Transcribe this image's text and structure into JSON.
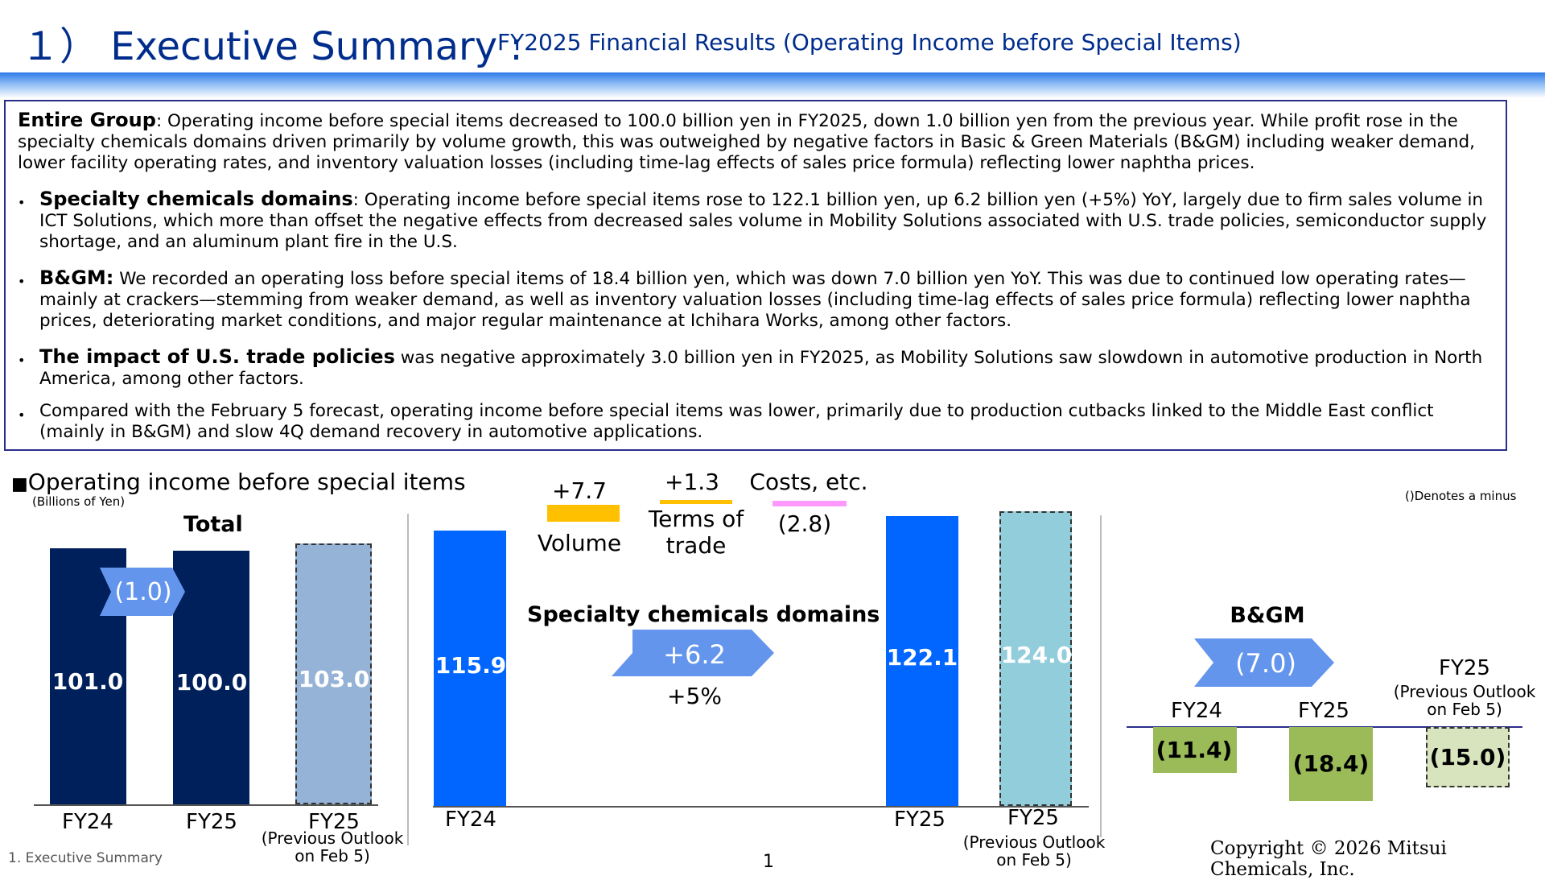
{
  "header": {
    "title": "１） Executive Summary :",
    "subtitle": "FY2025 Financial Results (Operating Income before Special Items)"
  },
  "summary": {
    "lead_bold": "Entire Group",
    "lead_text": ": Operating income before special items decreased to 100.0 billion yen in FY2025, down 1.0 billion yen from the previous year. While profit rose in the specialty chemicals domains driven primarily by volume growth, this was outweighed by negative factors in Basic & Green Materials (B&GM) including weaker demand, lower facility operating rates, and inventory valuation losses (including time-lag effects of sales price formula) reflecting lower naphtha prices.",
    "bullets": [
      {
        "bold": "Specialty chemicals domains",
        "text": ": Operating income before special items rose to 122.1 billion yen, up 6.2 billion yen (+5%) YoY, largely due to firm sales volume  in ICT Solutions, which more than offset the negative effects from decreased sales volume in Mobility Solutions associated with U.S. trade policies, semiconductor supply shortage, and an aluminum plant fire in the U.S."
      },
      {
        "bold": "B&GM:",
        "text": " We recorded an operating loss before special items of 18.4 billion yen, which was down 7.0 billion yen YoY. This was due to continued low operating rates—mainly at crackers—stemming from weaker demand, as well as inventory valuation losses (including time-lag effects of sales price formula) reflecting lower naphtha prices, deteriorating market conditions, and major regular maintenance at Ichihara Works, among other factors."
      },
      {
        "bold": "The impact of U.S. trade policies",
        "text": " was negative approximately 3.0 billion yen in FY2025, as Mobility Solutions saw slowdown in automotive production in North America, among other factors."
      },
      {
        "bold": "",
        "text": "Compared with the February 5 forecast, operating income before special items was lower, primarily due to production cutbacks linked to the Middle East conflict (mainly in B&GM) and slow 4Q demand recovery in automotive applications."
      }
    ],
    "bullet_char": "•"
  },
  "chart_section": {
    "title": "Operating income before special items",
    "unit": "(Billions of Yen)",
    "minus_note": "()Denotes a minus",
    "square": "■"
  },
  "chart_data": [
    {
      "type": "bar",
      "title": "Total",
      "categories": [
        "FY24",
        "FY25",
        "FY25"
      ],
      "values": [
        101.0,
        100.0,
        103.0
      ],
      "value_labels": [
        "101.0",
        "100.0",
        "103.0"
      ],
      "previous_outlook_note": "(Previous Outlook on Feb 5)",
      "change_label": "(1.0)",
      "colors": [
        "#00205B",
        "#00205B",
        "#95B3D7"
      ]
    },
    {
      "type": "bar",
      "title": "Specialty chemicals domains",
      "categories": [
        "FY24",
        "FY25",
        "FY25"
      ],
      "values": [
        115.9,
        122.1,
        124.0
      ],
      "value_labels": [
        "115.9",
        "122.1",
        "124.0"
      ],
      "previous_outlook_note": "(Previous Outlook on Feb 5)",
      "change_label": "+6.2",
      "change_pct": "+5%",
      "factors": [
        {
          "value_label": "+7.7",
          "name": "Volume",
          "color": "#FFC000"
        },
        {
          "value_label": "+1.3",
          "name": "Terms of trade",
          "color": "#FFC000"
        },
        {
          "value_label": "(2.8)",
          "name": "Costs, etc.",
          "color": "#FF99FF"
        }
      ],
      "colors": [
        "#0066FF",
        "#0066FF",
        "#92CDDC"
      ]
    },
    {
      "type": "bar",
      "title": "B&GM",
      "categories": [
        "FY24",
        "FY25",
        "FY25"
      ],
      "values": [
        -11.4,
        -18.4,
        -15.0
      ],
      "value_labels": [
        "(11.4)",
        "(18.4)",
        "(15.0)"
      ],
      "previous_outlook_note": "(Previous Outlook on Feb 5)",
      "change_label": "(7.0)",
      "colors": [
        "#9BBB59",
        "#9BBB59",
        "#D7E4BD"
      ]
    }
  ],
  "footer": {
    "left": "1.  Executive Summary",
    "page": "1",
    "copyright": "Copyright © 2026 Mitsui Chemicals, Inc."
  }
}
